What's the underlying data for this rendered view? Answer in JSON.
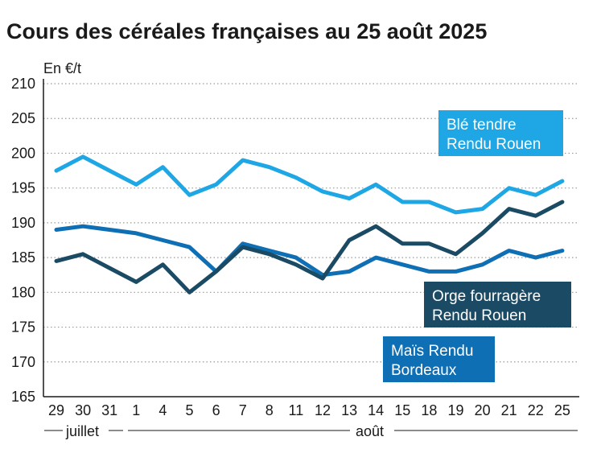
{
  "chart_data": {
    "type": "line",
    "title": "Cours des céréales françaises au 25 août 2025",
    "ylabel": "En €/t",
    "ylim": [
      165,
      210
    ],
    "yticks": [
      "210",
      "205",
      "200",
      "195",
      "190",
      "185",
      "180",
      "175",
      "170",
      "165"
    ],
    "categories": [
      "29",
      "30",
      "31",
      "1",
      "4",
      "5",
      "6",
      "7",
      "8",
      "11",
      "12",
      "13",
      "14",
      "15",
      "18",
      "19",
      "20",
      "21",
      "22",
      "25"
    ],
    "months": [
      {
        "label": "juillet"
      },
      {
        "label": "août"
      }
    ],
    "grid": true,
    "series": [
      {
        "name": "Blé tendre Rendu Rouen",
        "label_lines": [
          "Blé tendre",
          "Rendu Rouen"
        ],
        "color": "#1ea7e4",
        "values": [
          197.5,
          199.5,
          197.5,
          195.5,
          198,
          194,
          195.5,
          199,
          198,
          196.5,
          194.5,
          193.5,
          195.5,
          193,
          193,
          191.5,
          192,
          195,
          194,
          196
        ]
      },
      {
        "name": "Orge fourragère Rendu Rouen",
        "label_lines": [
          "Orge fourragère",
          "Rendu Rouen"
        ],
        "color": "#1b4a64",
        "values": [
          184.5,
          185.5,
          183.5,
          181.5,
          184,
          180,
          183,
          186.5,
          185.5,
          184,
          182,
          187.5,
          189.5,
          187,
          187,
          185.5,
          188.5,
          192,
          191,
          193
        ]
      },
      {
        "name": "Maïs Rendu Bordeaux",
        "label_lines": [
          "Maïs Rendu",
          "Bordeaux"
        ],
        "color": "#0f6fb5",
        "values": [
          189,
          189.5,
          189,
          188.5,
          187.5,
          186.5,
          183,
          187,
          186,
          185,
          182.5,
          183,
          185,
          184,
          183,
          183,
          184,
          186,
          185,
          186
        ]
      }
    ]
  }
}
